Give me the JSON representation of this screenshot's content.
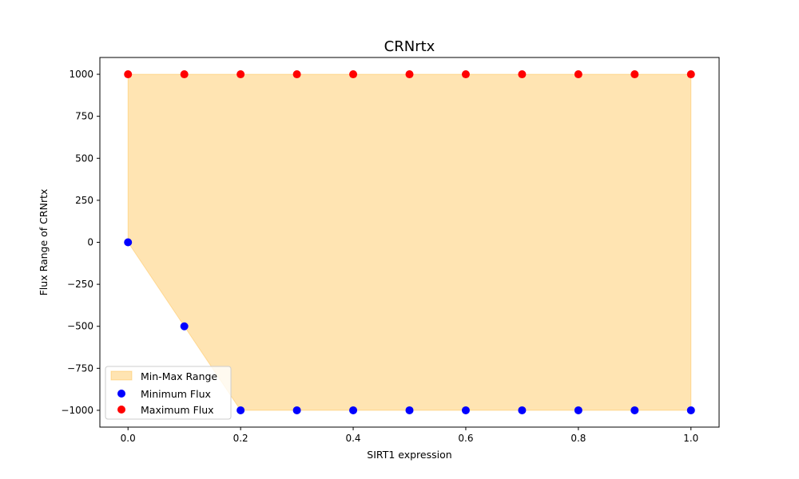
{
  "chart_data": {
    "type": "scatter",
    "title": "CRNrtx",
    "xlabel": "SIRT1 expression",
    "ylabel": "Flux Range of CRNrtx",
    "xlim": [
      -0.05,
      1.05
    ],
    "ylim": [
      -1100,
      1100
    ],
    "xticks": [
      0.0,
      0.2,
      0.4,
      0.6,
      0.8,
      1.0
    ],
    "xtick_labels": [
      "0.0",
      "0.2",
      "0.4",
      "0.6",
      "0.8",
      "1.0"
    ],
    "yticks": [
      -1000,
      -750,
      -500,
      -250,
      0,
      250,
      500,
      750,
      1000
    ],
    "ytick_labels": [
      "−1000",
      "−750",
      "−500",
      "−250",
      "0",
      "250",
      "500",
      "750",
      "1000"
    ],
    "x": [
      0.0,
      0.1,
      0.2,
      0.3,
      0.4,
      0.5,
      0.6,
      0.7,
      0.8,
      0.9,
      1.0
    ],
    "fill": {
      "name": "Min-Max Range",
      "color": "#FFA500",
      "alpha": 0.3
    },
    "series": [
      {
        "name": "Minimum Flux",
        "color": "#0000FF",
        "values": [
          0,
          -500,
          -1000,
          -1000,
          -1000,
          -1000,
          -1000,
          -1000,
          -1000,
          -1000,
          -1000
        ]
      },
      {
        "name": "Maximum Flux",
        "color": "#FF0000",
        "values": [
          1000,
          1000,
          1000,
          1000,
          1000,
          1000,
          1000,
          1000,
          1000,
          1000,
          1000
        ]
      }
    ],
    "grid": false,
    "legend_position": "lower-left"
  }
}
